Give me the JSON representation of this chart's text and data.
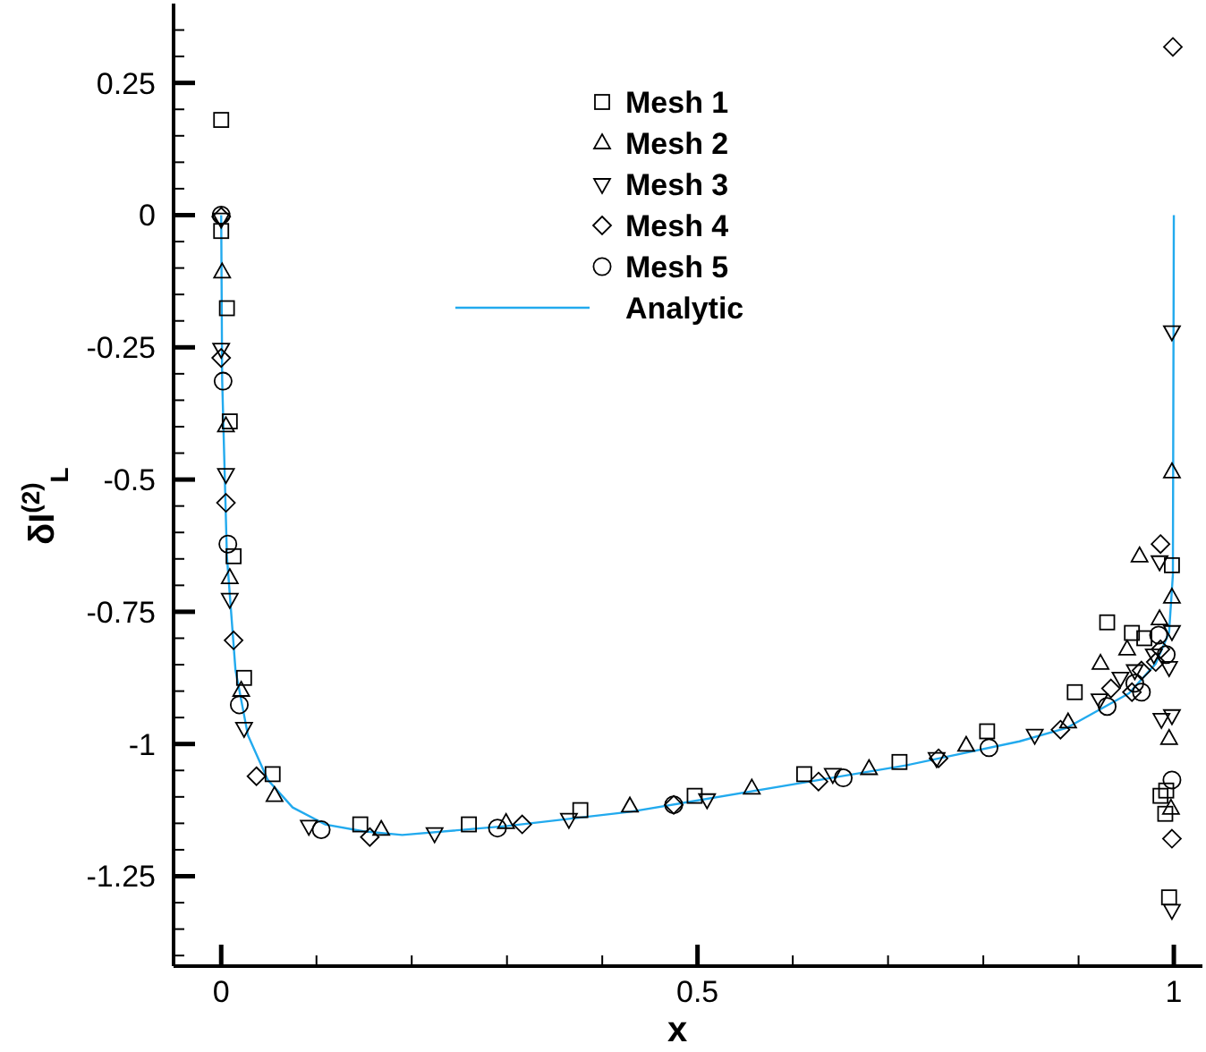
{
  "chart_data": {
    "type": "scatter",
    "xlabel": "x",
    "ylabel": "δI$^{(2)}$$_{L}$",
    "xlim": [
      -0.05,
      1.03
    ],
    "ylim": [
      -1.42,
      0.4
    ],
    "xticks": [
      0,
      {
        "value": 0.1,
        "label": null
      },
      {
        "value": 0.2,
        "label": null
      },
      {
        "value": 0.3,
        "label": null
      },
      {
        "value": 0.4,
        "label": null
      },
      0.5,
      {
        "value": 0.6,
        "label": null
      },
      {
        "value": 0.7,
        "label": null
      },
      {
        "value": 0.8,
        "label": null
      },
      {
        "value": 0.9,
        "label": null
      },
      1
    ],
    "yticks": [
      {
        "value": 0.35,
        "label": null
      },
      {
        "value": 0.3,
        "label": null
      },
      0.25,
      {
        "value": 0.2,
        "label": null
      },
      {
        "value": 0.15,
        "label": null
      },
      {
        "value": 0.1,
        "label": null
      },
      {
        "value": 0.05,
        "label": null
      },
      0,
      {
        "value": -0.05,
        "label": null
      },
      {
        "value": -0.1,
        "label": null
      },
      {
        "value": -0.15,
        "label": null
      },
      {
        "value": -0.2,
        "label": null
      },
      -0.25,
      {
        "value": -0.3,
        "label": null
      },
      {
        "value": -0.35,
        "label": null
      },
      {
        "value": -0.4,
        "label": null
      },
      {
        "value": -0.45,
        "label": null
      },
      -0.5,
      {
        "value": -0.55,
        "label": null
      },
      {
        "value": -0.6,
        "label": null
      },
      {
        "value": -0.65,
        "label": null
      },
      {
        "value": -0.7,
        "label": null
      },
      -0.75,
      {
        "value": -0.8,
        "label": null
      },
      {
        "value": -0.85,
        "label": null
      },
      {
        "value": -0.9,
        "label": null
      },
      {
        "value": -0.95,
        "label": null
      },
      -1,
      {
        "value": -1.05,
        "label": null
      },
      {
        "value": -1.1,
        "label": null
      },
      {
        "value": -1.15,
        "label": null
      },
      {
        "value": -1.2,
        "label": null
      },
      -1.25,
      {
        "value": -1.3,
        "label": null
      },
      {
        "value": -1.35,
        "label": null
      },
      {
        "value": -1.4,
        "label": null
      }
    ],
    "grid": false,
    "legend": "top",
    "series": [
      {
        "name": "Mesh 1",
        "color": "#000000",
        "marker": "square",
        "x": [
          0,
          0,
          0.006,
          0.009,
          0.013,
          0.024,
          0.054,
          0.146,
          0.26,
          0.377,
          0.497,
          0.612,
          0.712,
          0.804,
          0.896,
          0.93,
          0.956,
          0.969,
          0.986,
          0.992,
          0.991,
          0.995,
          0.998
        ],
        "values": [
          0.18,
          -0.03,
          -0.176,
          -0.39,
          -0.645,
          -0.875,
          -1.057,
          -1.152,
          -1.152,
          -1.125,
          -1.098,
          -1.057,
          -1.034,
          -0.976,
          -0.902,
          -0.77,
          -0.79,
          -0.8,
          -1.098,
          -1.088,
          -1.132,
          -1.29,
          -0.662
        ]
      },
      {
        "name": "Mesh 2",
        "color": "#000000",
        "marker": "triangle",
        "x": [
          0.001,
          0.005,
          0.009,
          0.021,
          0.056,
          0.168,
          0.299,
          0.429,
          0.557,
          0.68,
          0.782,
          0.889,
          0.923,
          0.951,
          0.964,
          0.985,
          0.998,
          0.998,
          0.995,
          0.997
        ],
        "values": [
          -0.108,
          -0.399,
          -0.686,
          -0.899,
          -1.098,
          -1.162,
          -1.149,
          -1.118,
          -1.084,
          -1.047,
          -1.003,
          -0.959,
          -0.848,
          -0.821,
          -0.645,
          -0.764,
          -0.723,
          -0.486,
          -0.99,
          -1.122
        ]
      },
      {
        "name": "Mesh 3",
        "color": "#000000",
        "marker": "triangle-down",
        "x": [
          0,
          0,
          0.005,
          0.009,
          0.024,
          0.092,
          0.224,
          0.365,
          0.51,
          0.642,
          0.751,
          0.854,
          0.922,
          0.944,
          0.959,
          0.979,
          0.985,
          0.995,
          0.998,
          0.987,
          0.998,
          0.998,
          0.998
        ],
        "values": [
          -0.007,
          -0.253,
          -0.49,
          -0.726,
          -0.97,
          -1.155,
          -1.169,
          -1.142,
          -1.105,
          -1.057,
          -1.027,
          -0.983,
          -0.916,
          -0.875,
          -0.861,
          -0.831,
          -0.655,
          -0.855,
          -0.787,
          -0.953,
          -0.946,
          -0.22,
          -1.314
        ]
      },
      {
        "name": "Mesh 4",
        "color": "#000000",
        "marker": "diamond",
        "x": [
          0,
          0,
          0.005,
          0.013,
          0.037,
          0.156,
          0.316,
          0.475,
          0.627,
          0.753,
          0.881,
          0.934,
          0.956,
          0.966,
          0.981,
          0.986,
          0.986,
          0.998,
          0.999
        ],
        "values": [
          -0.003,
          -0.27,
          -0.544,
          -0.804,
          -1.061,
          -1.176,
          -1.152,
          -1.115,
          -1.071,
          -1.027,
          -0.973,
          -0.895,
          -0.902,
          -0.861,
          -0.845,
          -0.821,
          -0.622,
          -1.179,
          0.318
        ]
      },
      {
        "name": "Mesh 5",
        "color": "#000000",
        "marker": "circle",
        "x": [
          0,
          0.002,
          0.007,
          0.019,
          0.105,
          0.29,
          0.475,
          0.653,
          0.806,
          0.93,
          0.959,
          0.966,
          0.984,
          0.992,
          0.998
        ],
        "values": [
          0,
          -0.314,
          -0.622,
          -0.926,
          -1.162,
          -1.159,
          -1.115,
          -1.064,
          -1.007,
          -0.929,
          -0.885,
          -0.902,
          -0.794,
          -0.831,
          -1.068
        ]
      },
      {
        "name": "Analytic",
        "type": "line",
        "color": "#22aaee",
        "marker": "none",
        "line_style": "solid",
        "x": [
          0,
          0.001,
          0.006,
          0.015,
          0.028,
          0.049,
          0.075,
          0.109,
          0.149,
          0.19,
          0.3,
          0.43,
          0.618,
          0.72,
          0.838,
          0.887,
          0.953,
          0.981,
          0.995,
          0.999,
          1
        ],
        "values": [
          0,
          -0.31,
          -0.645,
          -0.86,
          -0.983,
          -1.068,
          -1.12,
          -1.152,
          -1.165,
          -1.172,
          -1.155,
          -1.128,
          -1.071,
          -1.04,
          -0.995,
          -0.97,
          -0.904,
          -0.848,
          -0.789,
          -0.68,
          0
        ]
      }
    ]
  }
}
